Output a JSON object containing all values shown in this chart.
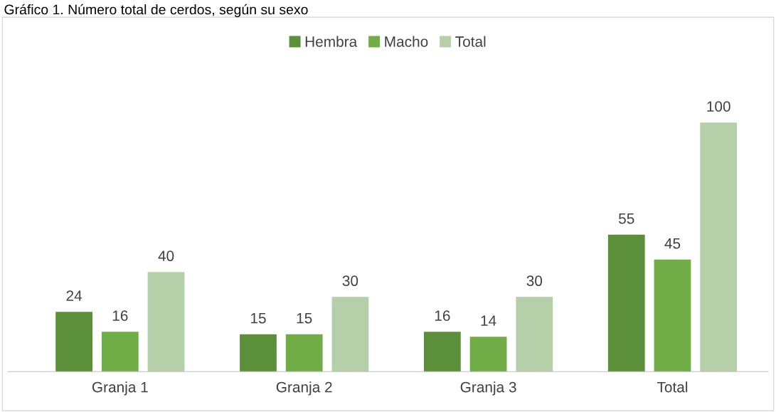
{
  "chart_data": {
    "type": "bar",
    "title": "Gráfico 1. Número total de cerdos, según su sexo",
    "categories": [
      "Granja 1",
      "Granja 2",
      "Granja 3",
      "Total"
    ],
    "series": [
      {
        "name": "Hembra",
        "color": "#5b8f3a",
        "values": [
          24,
          15,
          16,
          55
        ]
      },
      {
        "name": "Macho",
        "color": "#70ad47",
        "values": [
          16,
          15,
          14,
          45
        ]
      },
      {
        "name": "Total",
        "color": "#b5cfa8",
        "values": [
          40,
          30,
          30,
          100
        ]
      }
    ],
    "data_labels": true,
    "legend": "top",
    "grid": false,
    "tick_labels": "x"
  }
}
